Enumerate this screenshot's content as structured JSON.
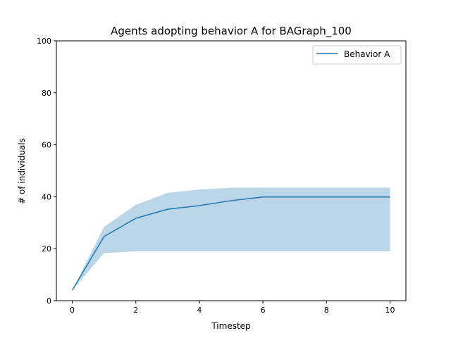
{
  "chart_data": {
    "type": "line",
    "title": "Agents adopting behavior A for BAGraph_100",
    "xlabel": "Timestep",
    "ylabel": "# of individuals",
    "xlim": [
      -0.5,
      10.5
    ],
    "ylim": [
      0,
      100
    ],
    "x_ticks": [
      0,
      2,
      4,
      6,
      8,
      10
    ],
    "y_ticks": [
      0,
      20,
      40,
      60,
      80,
      100
    ],
    "grid": false,
    "legend_position": "top-right",
    "x": [
      0,
      1,
      2,
      3,
      4,
      5,
      6,
      7,
      8,
      9,
      10
    ],
    "series": [
      {
        "name": "Behavior A",
        "color": "#1f77b4",
        "values": [
          4,
          24.7,
          31.7,
          35.2,
          36.6,
          38.5,
          39.9,
          39.9,
          39.9,
          39.9,
          39.9
        ],
        "band_lower": [
          4,
          18.3,
          19,
          19,
          19,
          19,
          19,
          19,
          19,
          19,
          19
        ],
        "band_upper": [
          4,
          28.4,
          36.9,
          41.5,
          42.8,
          43.5,
          43.5,
          43.5,
          43.5,
          43.5,
          43.5
        ],
        "band_color": "#bcd6e9"
      }
    ]
  }
}
